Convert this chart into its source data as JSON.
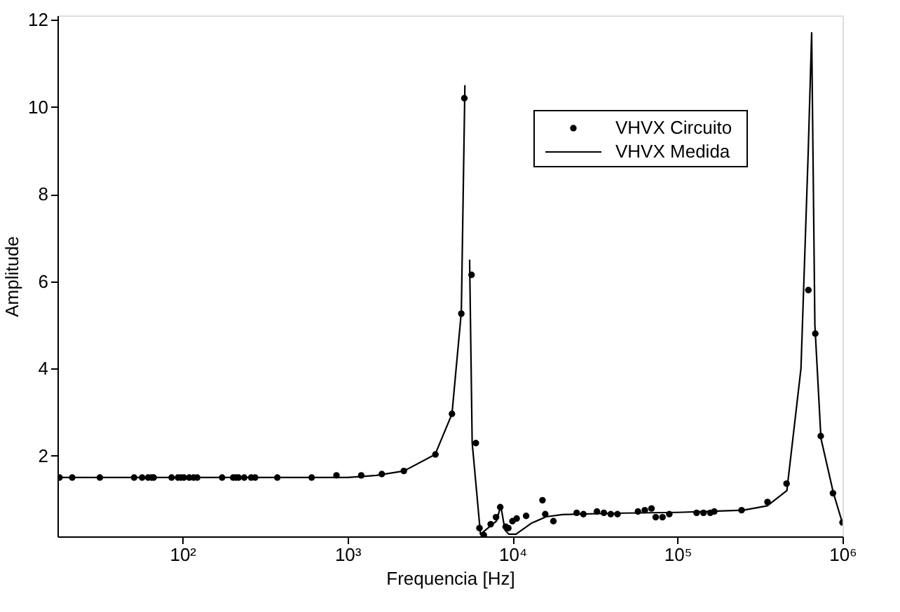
{
  "chart_data": {
    "type": "line",
    "xlabel": "Frequencia [Hz]",
    "ylabel": "Amplitude",
    "log": "x",
    "xlim": [
      17.5,
      1000000
    ],
    "xticks": [
      {
        "value": 100,
        "label": "10²"
      },
      {
        "value": 1000,
        "label": "10³"
      },
      {
        "value": 10000,
        "label": "10⁴"
      },
      {
        "value": 100000,
        "label": "10⁵"
      },
      {
        "value": 1000000,
        "label": "10⁶"
      }
    ],
    "ylim": [
      0.15,
      12.1
    ],
    "yticks": [
      2,
      4,
      6,
      8,
      10,
      12
    ],
    "grid": false,
    "legend": "top right",
    "series": [
      {
        "name": "VHVX Circuito",
        "type": "scatter",
        "marker": "circle",
        "color": "#000000",
        "x": [
          18,
          21.5,
          31.6,
          51,
          57,
          62,
          65,
          67,
          86,
          94,
          98,
          102,
          110,
          117,
          123,
          174,
          203,
          211,
          219,
          237,
          261,
          276,
          376,
          607,
          858,
          1212,
          1616,
          2197,
          3415,
          4300,
          4900,
          5110,
          5650,
          6000,
          6310,
          6700,
          7380,
          7950,
          8430,
          9100,
          9440,
          10000,
          10600,
          12100,
          15200,
          15800,
          17700,
          24500,
          26900,
          32500,
          35800,
          39400,
          43300,
          57600,
          63400,
          69600,
          73800,
          81100,
          89200,
          130600,
          143600,
          157900,
          167100,
          244500,
          351000,
          458000,
          621000,
          645000,
          684000,
          738000,
          875000,
          1000000
        ],
        "values": [
          1.5,
          1.5,
          1.5,
          1.5,
          1.5,
          1.5,
          1.5,
          1.5,
          1.5,
          1.5,
          1.5,
          1.5,
          1.5,
          1.5,
          1.5,
          1.5,
          1.5,
          1.5,
          1.5,
          1.5,
          1.5,
          1.5,
          1.5,
          1.5,
          1.55,
          1.55,
          1.58,
          1.65,
          2.03,
          2.96,
          5.26,
          10.2,
          6.15,
          2.29,
          0.34,
          0.18,
          0.43,
          0.59,
          0.82,
          0.37,
          0.34,
          0.5,
          0.56,
          0.62,
          0.98,
          0.66,
          0.5,
          0.69,
          0.66,
          0.72,
          0.69,
          0.66,
          0.66,
          0.72,
          0.75,
          0.79,
          0.59,
          0.59,
          0.66,
          0.69,
          0.69,
          0.69,
          0.72,
          0.75,
          0.94,
          1.36,
          5.8,
          null,
          4.8,
          2.45,
          1.14,
          0.47
        ]
      },
      {
        "name": "VHVX Medida",
        "type": "line",
        "marker": "none",
        "line_style": "solid",
        "color": "#000000",
        "x": [
          18,
          1000,
          1500,
          2200,
          3400,
          4300,
          4900,
          5150,
          5200,
          5400,
          5500,
          5700,
          6400,
          8000,
          8500,
          9000,
          9500,
          10500,
          13000,
          16000,
          20000,
          40000,
          100000,
          250000,
          350000,
          460000,
          560000,
          620000,
          650000,
          680000,
          740000,
          880000,
          1000000
        ],
        "values": [
          1.5,
          1.5,
          1.55,
          1.65,
          2.03,
          2.96,
          5.3,
          10.5,
          null,
          null,
          6.5,
          2.3,
          0.2,
          0.5,
          0.85,
          0.3,
          0.2,
          0.2,
          0.45,
          0.6,
          0.65,
          0.68,
          0.7,
          0.75,
          0.85,
          1.2,
          4.0,
          9.0,
          11.7,
          5.0,
          2.4,
          1.15,
          0.45
        ]
      }
    ]
  }
}
